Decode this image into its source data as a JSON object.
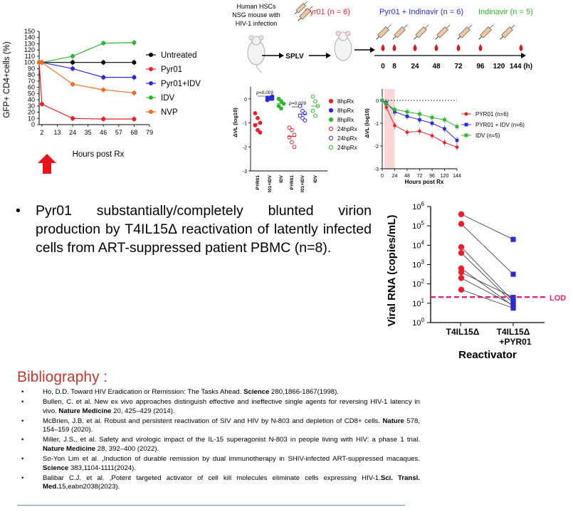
{
  "panel_a": {
    "chart_data": {
      "type": "line",
      "ylabel": "GFP+ CD4+cells (%)",
      "xlabel": "Hours post Rx",
      "x_ticks": [
        "2",
        "13",
        "24",
        "35",
        "46",
        "57",
        "68",
        "79"
      ],
      "y_ticks": [
        "0",
        "10",
        "20",
        "30",
        "40",
        "50",
        "60",
        "70",
        "80",
        "90",
        "100",
        "110",
        "120",
        "130",
        "140",
        "150"
      ],
      "ylim": [
        0,
        150
      ],
      "xlim": [
        0,
        79
      ],
      "series": [
        {
          "name": "Untreated",
          "color": "#000000",
          "x": [
            0,
            2,
            24,
            46,
            68
          ],
          "y": [
            100,
            100,
            100,
            100,
            100
          ]
        },
        {
          "name": "Pyr01",
          "color": "#e8202a",
          "x": [
            0,
            2,
            24,
            46,
            68
          ],
          "y": [
            100,
            33,
            10,
            9,
            9
          ]
        },
        {
          "name": "Pyr01+IDV",
          "color": "#2b2bd6",
          "x": [
            0,
            2,
            24,
            46,
            68
          ],
          "y": [
            100,
            100,
            90,
            76,
            76
          ]
        },
        {
          "name": "IDV",
          "color": "#2fb52f",
          "x": [
            0,
            2,
            24,
            46,
            68
          ],
          "y": [
            100,
            100,
            110,
            131,
            132
          ]
        },
        {
          "name": "NVP",
          "color": "#ef6c24",
          "x": [
            0,
            2,
            24,
            46,
            68
          ],
          "y": [
            100,
            100,
            65,
            56,
            51
          ]
        }
      ]
    }
  },
  "schematic": {
    "mouse_label_lines": [
      "Human HSCs",
      "NSG mouse with",
      "HIV-1 infection"
    ],
    "splv": "SPLV",
    "group_pyr": "Pyr01 (n = 6)",
    "group_combo": "Pyr01 + Indinavir (n = 6)",
    "group_idv": "Indinavir (n = 5)",
    "timepoints": [
      "0",
      "8",
      "24",
      "48",
      "72",
      "96",
      "120",
      "144 (h)"
    ],
    "colors": {
      "pyr": "#e8202a",
      "combo": "#2b2bd6",
      "idv": "#2fb52f"
    }
  },
  "panel_b": {
    "chart_data": {
      "type": "scatter",
      "ylabel": "ΔVL (log10)",
      "y_ticks": [
        "0",
        "-1",
        "-2",
        "-3"
      ],
      "ylim": [
        -3,
        0.5
      ],
      "categories": [
        "PYR01",
        "PYR01+IDV",
        "IDV",
        "PYR01",
        "PYR01+IDV",
        "IDV"
      ],
      "pvalues": [
        "p=0.009",
        "p=0.029"
      ],
      "legend": [
        "8hpRx",
        "8hpRx",
        "8hpRx",
        "24hpRx",
        "24hpRx",
        "24hpRx"
      ],
      "series": [
        {
          "name": "8hpRx",
          "color": "#e8202a",
          "filled": true,
          "values": [
            -0.6,
            -0.8,
            -1.0,
            -1.1,
            -1.3,
            -1.4
          ]
        },
        {
          "name": "8hpRx",
          "color": "#2b2bd6",
          "filled": true,
          "values": [
            0.05,
            0.0,
            0.1,
            -0.05,
            0.05,
            0.0
          ]
        },
        {
          "name": "8hpRx",
          "color": "#2fb52f",
          "filled": true,
          "values": [
            0.0,
            -0.1,
            -0.2,
            -0.3,
            -0.4
          ]
        },
        {
          "name": "24hpRx",
          "color": "#e8202a",
          "filled": false,
          "values": [
            -1.2,
            -1.3,
            -1.5,
            -1.6,
            -1.8,
            -2.0
          ]
        },
        {
          "name": "24hpRx",
          "color": "#2b2bd6",
          "filled": false,
          "values": [
            -0.3,
            -0.5,
            -0.6,
            -0.7,
            -0.8,
            -0.9
          ]
        },
        {
          "name": "24hpRx",
          "color": "#2fb52f",
          "filled": false,
          "values": [
            0.1,
            -0.1,
            -0.3,
            -0.5,
            -0.7
          ]
        }
      ]
    }
  },
  "panel_c": {
    "chart_data": {
      "type": "line",
      "ylabel": "ΔVL (log10)",
      "xlabel": "Hours post Rx",
      "x_ticks": [
        "0",
        "24",
        "48",
        "72",
        "96",
        "120",
        "144"
      ],
      "y_ticks": [
        "0",
        "-1",
        "-2",
        "-3"
      ],
      "ylim": [
        -3,
        0.5
      ],
      "xlim": [
        0,
        144
      ],
      "x": [
        0,
        8,
        24,
        48,
        72,
        96,
        120,
        144
      ],
      "series": [
        {
          "name": "PYR01 (n=6)",
          "color": "#e8202a",
          "marker": "circle",
          "values": [
            0,
            -0.3,
            -1.1,
            -1.4,
            -1.35,
            -1.55,
            -1.85,
            -2.05
          ]
        },
        {
          "name": "PYR01 + IDV (n=6)",
          "color": "#2b2bd6",
          "marker": "square",
          "values": [
            0,
            -0.1,
            -0.5,
            -0.7,
            -0.85,
            -1.0,
            -1.25,
            -1.75
          ]
        },
        {
          "name": "IDV (n=5)",
          "color": "#2fb52f",
          "marker": "square",
          "values": [
            0,
            -0.15,
            -0.4,
            -0.5,
            -0.6,
            -0.75,
            -0.85,
            -1.15
          ]
        }
      ]
    }
  },
  "panel_d": {
    "chart_data": {
      "type": "scatter",
      "ylabel": "Viral RNA (copies/mL)",
      "xlabel": "Reactivator",
      "categories": [
        "T4IL15Δ",
        "T4IL15Δ\n+PYR01"
      ],
      "cat1": "T4IL15Δ",
      "cat2a": "T4IL15Δ",
      "cat2b": "+PYR01",
      "y_ticks_exp": [
        "0",
        "1",
        "2",
        "3",
        "4",
        "5",
        "6"
      ],
      "y_base": "10",
      "ylim_log10": [
        0,
        6
      ],
      "lod_label": "LOD",
      "lod_log10": 1.32,
      "pairs_log10": [
        [
          5.6,
          4.3
        ],
        [
          5.1,
          2.5
        ],
        [
          3.9,
          1.1
        ],
        [
          3.6,
          1.0
        ],
        [
          2.8,
          0.85
        ],
        [
          2.6,
          1.3
        ],
        [
          2.3,
          0.9
        ],
        [
          1.7,
          0.75
        ]
      ],
      "colors": {
        "before": "#e8202a",
        "after": "#2b2bd6",
        "lod": "#e0207a"
      }
    }
  },
  "bullet": {
    "symbol": "•",
    "text": "Pyr01 substantially/completely blunted virion production by T4IL15Δ reactivation of latently infected cells from ART-suppressed patient PBMC (n=8)."
  },
  "bibliography": {
    "title": "Bibliography :",
    "bullet": "•",
    "refs": [
      {
        "pre": "Ho, D.D. Toward HIV Eradication or Remission: The Tasks Ahead. ",
        "journal": "Science",
        "post": " 280,1866-1867(1998)."
      },
      {
        "pre": "Bullen, C. et al. New ex vivo approaches distinguish effective and ineffective single agents for reversing HIV-1 latency in vivo. ",
        "journal": "Nature Medicine",
        "post": " 20, 425–429 (2014)."
      },
      {
        "pre": "McBrien, J.B. et al. Robust and persistent reactivation of SIV and HIV by N-803 and depletion of CD8+ cells. ",
        "journal": "Nature",
        "post": " 578, 154–159 (2020)."
      },
      {
        "pre": "Miller, J.S., et al. Safety and virologic impact of the IL-15 superagonist N-803 in people living with HIV: a phase 1 trial. ",
        "journal": "Nature Medicine",
        "post": " 28, 392–400 (2022)."
      },
      {
        "pre": "So-Yon Lim et al. ,Induction of durable remission by dual immunotherapy in SHIV-infected ART-suppressed macaques. ",
        "journal": "Science",
        "post": " 383,1104-1111(2024)."
      },
      {
        "pre": "Balibar C.J. et al. ,Potent targeted activator of cell kill molecules eliminate cells expressing HIV-1.",
        "journal": "Sci. Transl. Med.",
        "post": "15,eabn2038(2023)."
      }
    ]
  }
}
